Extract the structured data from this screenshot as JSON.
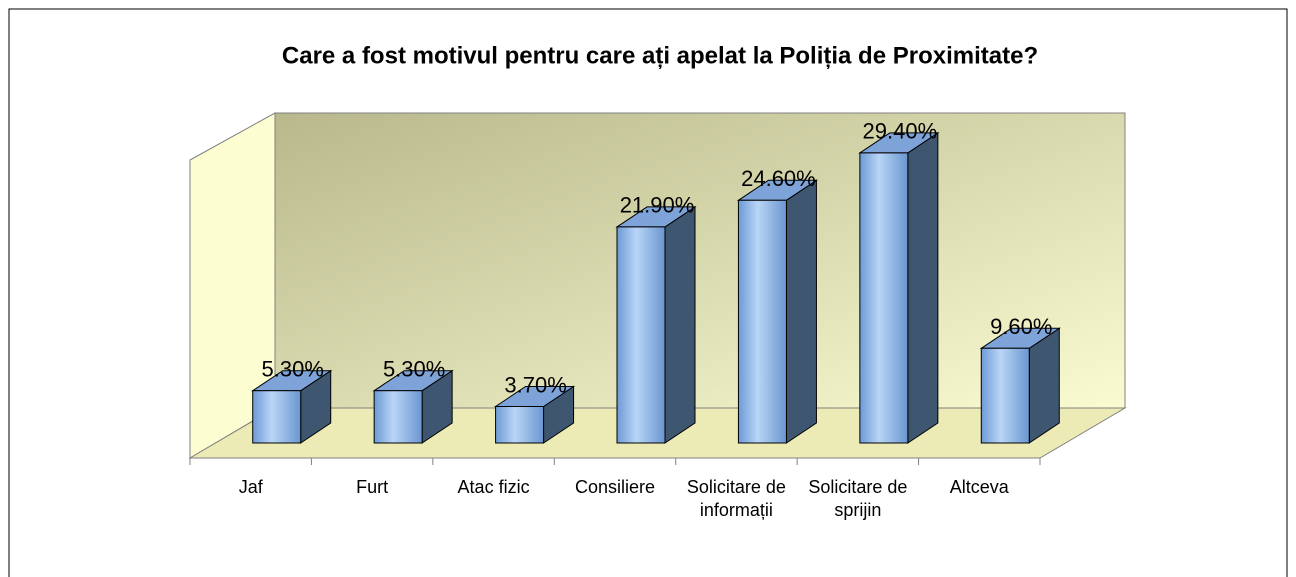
{
  "chart_data": {
    "type": "bar3d",
    "title": "Care a fost motivul pentru care ați apelat la Poliția de Proximitate?",
    "categories": [
      "Jaf",
      "Furt",
      "Atac fizic",
      "Consiliere",
      "Solicitare de informații",
      "Solicitare de sprijin",
      "Altceva"
    ],
    "values": [
      5.3,
      5.3,
      3.7,
      21.9,
      24.6,
      29.4,
      9.6
    ],
    "value_labels": [
      "5.30%",
      "5.30%",
      "3.70%",
      "21.90%",
      "24.60%",
      "29.40%",
      "9.60%"
    ],
    "color": "#8db4e8",
    "ylim": [
      0,
      30
    ]
  }
}
